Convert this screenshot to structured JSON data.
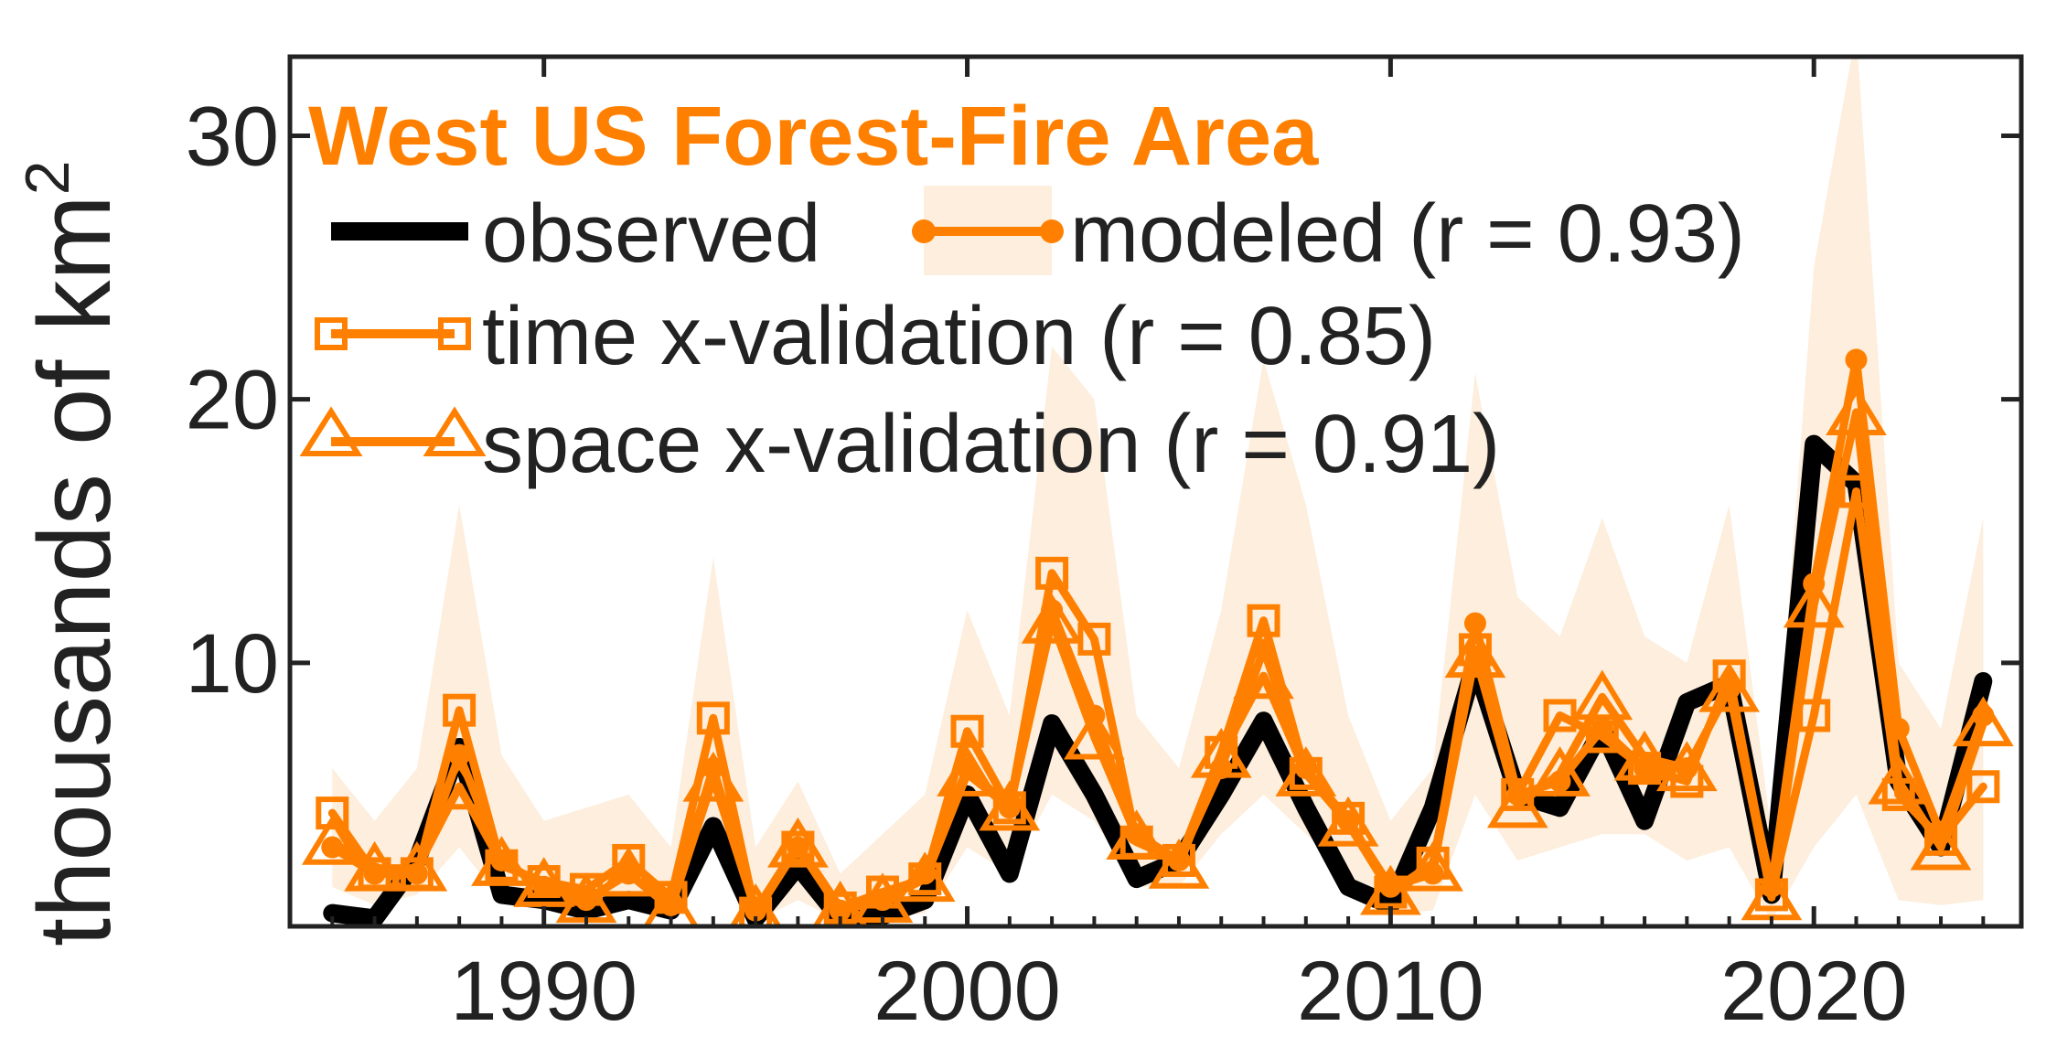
{
  "colors": {
    "observed": "#000000",
    "model": "#ff8000",
    "band": "#fdeedd",
    "axis": "#222222"
  },
  "chart_data": {
    "type": "line",
    "title": "West US Forest-Fire Area",
    "ylabel_main": "thousands  of  km",
    "ylabel_sup": "2",
    "xlabel": "",
    "xlim": [
      1984,
      2024.9
    ],
    "ylim": [
      0,
      33
    ],
    "xticks": [
      1990,
      2000,
      2010,
      2020
    ],
    "yticks": [
      10,
      20,
      30
    ],
    "x": [
      1985,
      1986,
      1987,
      1988,
      1989,
      1990,
      1991,
      1992,
      1993,
      1994,
      1995,
      1996,
      1997,
      1998,
      1999,
      2000,
      2001,
      2002,
      2003,
      2004,
      2005,
      2006,
      2007,
      2008,
      2009,
      2010,
      2011,
      2012,
      2013,
      2014,
      2015,
      2016,
      2017,
      2018,
      2019,
      2020,
      2021,
      2022,
      2023,
      2024
    ],
    "band_lower": [
      1.5,
      0.8,
      1.2,
      3.0,
      1.0,
      1.0,
      0.6,
      0.8,
      0.6,
      3.0,
      0.2,
      1.0,
      0.2,
      0.3,
      0.5,
      3.0,
      2.0,
      5.0,
      4.0,
      1.5,
      1.5,
      3.5,
      5.0,
      3.5,
      2.0,
      0.5,
      0.6,
      5.0,
      2.5,
      3.0,
      3.5,
      3.5,
      2.5,
      3.0,
      0.2,
      3.0,
      5.0,
      1.0,
      0.8,
      1.0
    ],
    "band_upper": [
      6.0,
      4.0,
      6.0,
      16.0,
      6.5,
      4.0,
      4.5,
      5.0,
      3.0,
      14.0,
      3.0,
      5.5,
      2.0,
      3.5,
      5.0,
      12.0,
      8.0,
      22.0,
      20.0,
      8.0,
      6.0,
      12.0,
      21.5,
      16.0,
      8.0,
      4.0,
      6.0,
      21.0,
      12.5,
      11.0,
      15.5,
      11.0,
      10.0,
      16.0,
      3.5,
      25.0,
      34.0,
      10.0,
      7.5,
      15.5
    ],
    "series": [
      {
        "name": "observed",
        "label": "observed",
        "marker": "none",
        "values": [
          0.5,
          0.3,
          2.5,
          6.8,
          1.2,
          1.0,
          0.6,
          1.0,
          0.6,
          3.8,
          0.3,
          2.3,
          0.3,
          0.4,
          1.0,
          5.0,
          2.0,
          7.7,
          5.0,
          1.8,
          2.5,
          5.0,
          7.8,
          4.5,
          1.5,
          0.8,
          4.5,
          10.0,
          5.0,
          4.5,
          7.5,
          4.0,
          8.5,
          9.2,
          1.2,
          18.3,
          16.8,
          5.5,
          3.0,
          9.3
        ]
      },
      {
        "name": "modeled",
        "label": "modeled (r = 0.93)",
        "marker": "circle",
        "values": [
          3.0,
          2.0,
          2.0,
          6.5,
          2.5,
          1.5,
          1.0,
          2.0,
          0.8,
          6.0,
          0.6,
          3.0,
          0.6,
          1.0,
          2.0,
          6.0,
          4.5,
          12.0,
          8.0,
          3.5,
          2.5,
          6.0,
          10.5,
          6.0,
          4.0,
          1.5,
          2.0,
          11.5,
          5.0,
          5.5,
          7.5,
          6.0,
          6.0,
          9.0,
          1.5,
          13.0,
          21.5,
          7.5,
          3.5,
          8.0
        ]
      },
      {
        "name": "time x-validation",
        "label": "time x-validation (r = 0.85)",
        "marker": "square",
        "values": [
          4.3,
          2.0,
          2.0,
          8.2,
          2.3,
          1.7,
          1.4,
          2.5,
          1.1,
          7.9,
          0.5,
          3.0,
          0.7,
          1.3,
          1.8,
          7.4,
          4.5,
          13.4,
          10.9,
          3.2,
          2.5,
          6.6,
          11.6,
          5.8,
          4.1,
          1.3,
          2.4,
          10.5,
          5.0,
          8.0,
          7.2,
          6.0,
          5.5,
          9.5,
          1.2,
          8.0,
          16.5,
          5.0,
          3.3,
          5.3
        ]
      },
      {
        "name": "space x-validation",
        "label": "space x-validation (r = 0.91)",
        "marker": "triangle",
        "values": [
          3.2,
          2.2,
          2.2,
          5.3,
          2.4,
          1.6,
          1.0,
          2.0,
          0.7,
          5.6,
          0.6,
          3.1,
          0.7,
          1.0,
          1.8,
          5.8,
          4.5,
          11.6,
          7.2,
          3.4,
          2.3,
          6.5,
          9.5,
          5.8,
          3.9,
          1.3,
          2.2,
          10.3,
          4.6,
          5.8,
          8.7,
          6.4,
          6.0,
          9.0,
          1.1,
          12.2,
          19.5,
          5.5,
          3.0,
          7.7
        ]
      }
    ],
    "legend": {
      "entries": [
        {
          "label": "observed"
        },
        {
          "label": "modeled (r = 0.93)"
        },
        {
          "label": "time x-validation (r = 0.85)"
        },
        {
          "label": "space x-validation (r = 0.91)"
        }
      ]
    }
  }
}
